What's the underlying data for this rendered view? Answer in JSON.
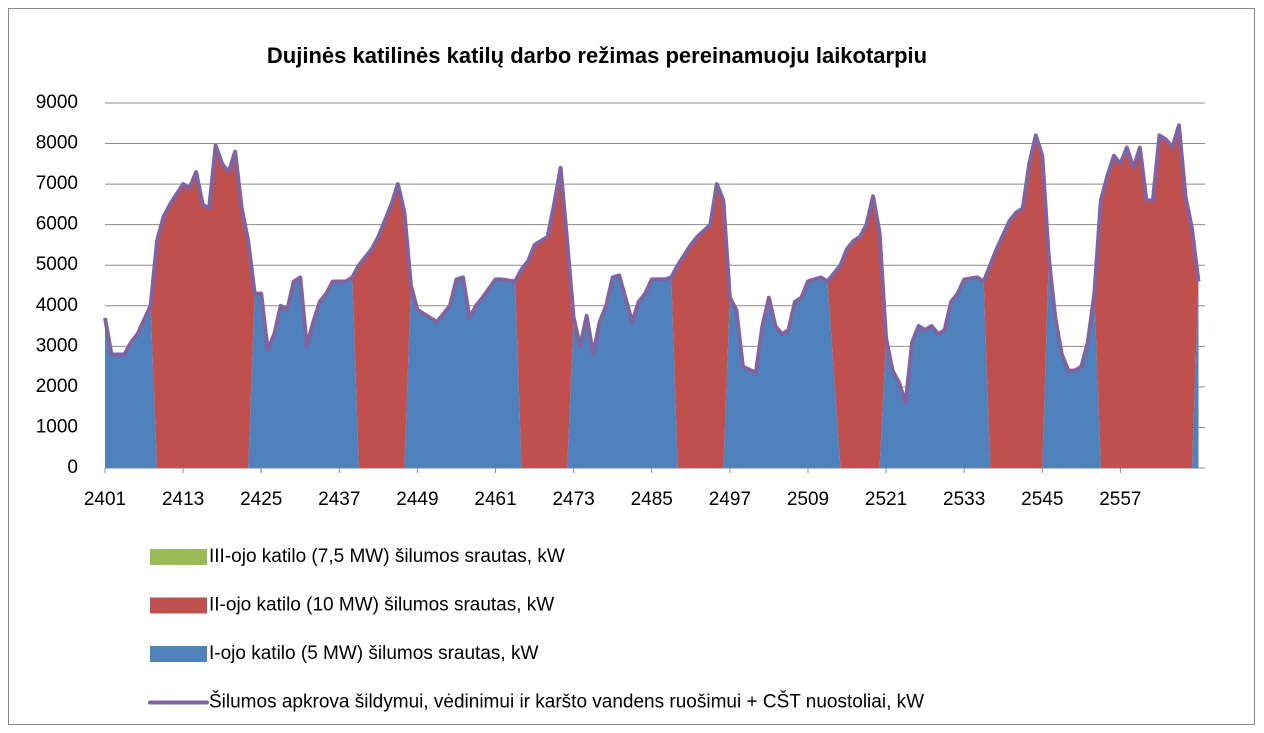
{
  "chart_data": {
    "type": "stacked_area_line",
    "title": "Dujinės katilinės katilų darbo režimas pereinamuoju laikotarpiu",
    "xlim": [
      2401,
      2570
    ],
    "xticks": [
      2401,
      2413,
      2425,
      2437,
      2449,
      2461,
      2473,
      2485,
      2497,
      2509,
      2521,
      2533,
      2545,
      2557
    ],
    "ylim": [
      0,
      9000
    ],
    "yticks": [
      0,
      1000,
      2000,
      3000,
      4000,
      5000,
      6000,
      7000,
      8000,
      9000
    ],
    "grid": true,
    "legend": "bottom",
    "x": [
      2401,
      2402,
      2404,
      2405,
      2406,
      2408,
      2409,
      2410,
      2411,
      2413,
      2414,
      2415,
      2416,
      2417,
      2418,
      2419,
      2420,
      2421,
      2422,
      2423,
      2424,
      2425,
      2426,
      2427,
      2428,
      2429,
      2430,
      2431,
      2432,
      2433,
      2434,
      2435,
      2436,
      2438,
      2439,
      2440,
      2442,
      2443,
      2445,
      2446,
      2447,
      2448,
      2449,
      2451,
      2452,
      2454,
      2455,
      2456,
      2457,
      2458,
      2459,
      2461,
      2462,
      2464,
      2465,
      2466,
      2467,
      2469,
      2470,
      2471,
      2472,
      2473,
      2474,
      2475,
      2476,
      2477,
      2478,
      2479,
      2480,
      2482,
      2483,
      2484,
      2485,
      2487,
      2488,
      2489,
      2491,
      2492,
      2494,
      2495,
      2496,
      2497,
      2498,
      2499,
      2501,
      2502,
      2503,
      2504,
      2505,
      2506,
      2507,
      2508,
      2509,
      2511,
      2512,
      2514,
      2515,
      2516,
      2517,
      2518,
      2519,
      2520,
      2521,
      2522,
      2523,
      2524,
      2525,
      2526,
      2527,
      2528,
      2529,
      2530,
      2531,
      2532,
      2533,
      2535,
      2536,
      2537,
      2538,
      2540,
      2541,
      2542,
      2543,
      2544,
      2545,
      2546,
      2547,
      2548,
      2549,
      2550,
      2551,
      2552,
      2553,
      2554,
      2555,
      2556,
      2557,
      2558,
      2559,
      2560,
      2561,
      2562,
      2563,
      2564,
      2565,
      2566,
      2567,
      2568,
      2569
    ],
    "series": [
      {
        "name": "III-ojo katilo (7,5 MW) šilumos srautas, kW",
        "color": "#9bbb59",
        "kind": "area",
        "values": [
          0,
          0,
          0,
          0,
          0,
          0,
          0,
          0,
          0,
          0,
          0,
          0,
          0,
          0,
          0,
          0,
          0,
          0,
          0,
          0,
          0,
          0,
          0,
          0,
          0,
          0,
          0,
          0,
          0,
          0,
          0,
          0,
          0,
          0,
          0,
          0,
          0,
          0,
          0,
          0,
          0,
          0,
          0,
          0,
          0,
          0,
          0,
          0,
          0,
          0,
          0,
          0,
          0,
          0,
          0,
          0,
          0,
          0,
          0,
          0,
          0,
          0,
          0,
          0,
          0,
          0,
          0,
          0,
          0,
          0,
          0,
          0,
          0,
          0,
          0,
          0,
          0,
          0,
          0,
          0,
          0,
          0,
          0,
          0,
          0,
          0,
          0,
          0,
          0,
          0,
          0,
          0,
          0,
          0,
          0,
          0,
          0,
          0,
          0,
          0,
          0,
          0,
          0,
          0,
          0,
          0,
          0,
          0,
          0,
          0,
          0,
          0,
          0,
          0,
          0,
          0,
          0,
          0,
          0,
          0,
          0,
          0,
          0,
          0,
          0,
          0,
          0,
          0,
          0,
          0,
          0,
          0,
          0,
          0,
          0,
          0,
          0,
          0,
          0,
          0,
          0,
          0,
          0,
          0,
          0,
          0,
          0,
          0,
          0
        ]
      },
      {
        "name": "II-ojo katilo (10 MW) šilumos srautas, kW",
        "color": "#c0504d",
        "kind": "area",
        "values": [
          0,
          0,
          0,
          0,
          0,
          0,
          5600,
          6200,
          6500,
          7000,
          6900,
          7300,
          6500,
          6400,
          7950,
          7500,
          7300,
          7800,
          6400,
          5600,
          0,
          0,
          0,
          0,
          0,
          0,
          0,
          0,
          0,
          0,
          0,
          0,
          0,
          0,
          0,
          5000,
          5400,
          5700,
          6500,
          7000,
          6300,
          0,
          0,
          0,
          0,
          0,
          0,
          0,
          0,
          0,
          0,
          0,
          0,
          0,
          4900,
          5100,
          5500,
          5700,
          6500,
          7400,
          5600,
          0,
          0,
          0,
          0,
          0,
          0,
          0,
          0,
          0,
          0,
          0,
          0,
          0,
          0,
          5000,
          5500,
          5700,
          6000,
          7000,
          6600,
          0,
          0,
          0,
          0,
          0,
          0,
          0,
          0,
          0,
          0,
          0,
          0,
          0,
          0,
          5000,
          5400,
          5600,
          5700,
          6000,
          6700,
          5800,
          0,
          0,
          0,
          0,
          0,
          0,
          0,
          0,
          0,
          0,
          0,
          0,
          0,
          0,
          0,
          5000,
          5400,
          6100,
          6300,
          6400,
          7500,
          8200,
          7700,
          0,
          0,
          0,
          0,
          0,
          0,
          0,
          0,
          6600,
          7200,
          7700,
          7500,
          7900,
          7400,
          7900,
          6600,
          6600,
          8200,
          8100,
          7900,
          8450,
          6700,
          5900,
          0
        ]
      },
      {
        "name": "I-ojo katilo (5 MW) šilumos srautas, kW",
        "color": "#4f81bd",
        "kind": "area",
        "values": [
          3700,
          2800,
          2800,
          3100,
          3300,
          4000,
          0,
          0,
          0,
          0,
          0,
          0,
          0,
          0,
          0,
          0,
          0,
          0,
          0,
          0,
          4300,
          4300,
          2900,
          3300,
          4000,
          3900,
          4600,
          4700,
          3000,
          3600,
          4100,
          4300,
          4600,
          4600,
          4700,
          0,
          0,
          0,
          0,
          0,
          0,
          4500,
          3900,
          3700,
          3600,
          4000,
          4650,
          4700,
          3700,
          4000,
          4200,
          4650,
          4650,
          4600,
          0,
          0,
          0,
          0,
          0,
          0,
          0,
          3700,
          3000,
          3750,
          2800,
          3600,
          4000,
          4700,
          4750,
          3600,
          4100,
          4300,
          4650,
          4650,
          4700,
          0,
          0,
          0,
          0,
          0,
          0,
          4200,
          3900,
          2500,
          2350,
          3500,
          4200,
          3500,
          3300,
          3400,
          4100,
          4200,
          4600,
          4700,
          4600,
          0,
          0,
          0,
          0,
          0,
          0,
          0,
          3200,
          2400,
          2100,
          1600,
          3100,
          3500,
          3400,
          3500,
          3300,
          3400,
          4100,
          4300,
          4650,
          4700,
          4600,
          0,
          0,
          0,
          0,
          0,
          0,
          0,
          0,
          5200,
          3700,
          2800,
          2400,
          2400,
          2500,
          3100,
          4300,
          0,
          0,
          0,
          0,
          0,
          0,
          0,
          0,
          0,
          0,
          0,
          0,
          0,
          0,
          0,
          4600
        ]
      },
      {
        "name": "Šilumos apkrova šildymui, vėdinimui ir karšto vandens ruošimui + CŠT nuostoliai, kW",
        "color": "#8064a2",
        "kind": "line",
        "values": [
          3700,
          2800,
          2800,
          3100,
          3300,
          4000,
          5600,
          6200,
          6500,
          7000,
          6900,
          7300,
          6500,
          6400,
          7950,
          7500,
          7300,
          7800,
          6400,
          5600,
          4300,
          4300,
          2900,
          3300,
          4000,
          3900,
          4600,
          4700,
          3000,
          3600,
          4100,
          4300,
          4600,
          4600,
          4700,
          5000,
          5400,
          5700,
          6500,
          7000,
          6300,
          4500,
          3900,
          3700,
          3600,
          4000,
          4650,
          4700,
          3700,
          4000,
          4200,
          4650,
          4650,
          4600,
          4900,
          5100,
          5500,
          5700,
          6500,
          7400,
          5600,
          3700,
          3000,
          3750,
          2800,
          3600,
          4000,
          4700,
          4750,
          3600,
          4100,
          4300,
          4650,
          4650,
          4700,
          5000,
          5500,
          5700,
          6000,
          7000,
          6600,
          4200,
          3900,
          2500,
          2350,
          3500,
          4200,
          3500,
          3300,
          3400,
          4100,
          4200,
          4600,
          4700,
          4600,
          5000,
          5400,
          5600,
          5700,
          6000,
          6700,
          5800,
          3200,
          2400,
          2100,
          1600,
          3100,
          3500,
          3400,
          3500,
          3300,
          3400,
          4100,
          4300,
          4650,
          4700,
          4600,
          5000,
          5400,
          6100,
          6300,
          6400,
          7500,
          8200,
          7700,
          5200,
          3700,
          2800,
          2400,
          2400,
          2500,
          3100,
          4300,
          6600,
          7200,
          7700,
          7500,
          7900,
          7400,
          7900,
          6600,
          6600,
          8200,
          8100,
          7900,
          8450,
          6700,
          5900,
          4600
        ]
      }
    ]
  }
}
